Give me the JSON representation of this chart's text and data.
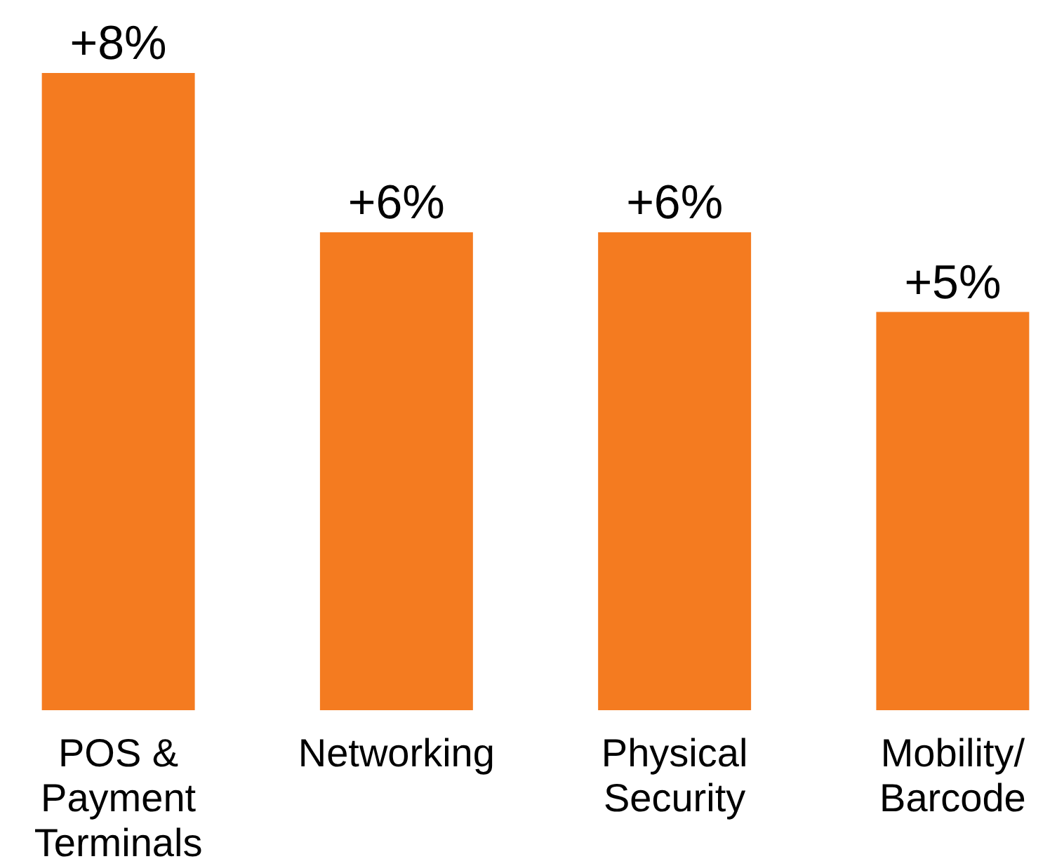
{
  "chart_data": {
    "type": "bar",
    "categories": [
      "POS & Payment Terminals",
      "Networking",
      "Physical Security",
      "Mobility/Barcode"
    ],
    "values": [
      8,
      6,
      6,
      5
    ],
    "color": "#f47b20",
    "value_labels": [
      "+8%",
      "+6%",
      "+6%",
      "+5%"
    ]
  }
}
